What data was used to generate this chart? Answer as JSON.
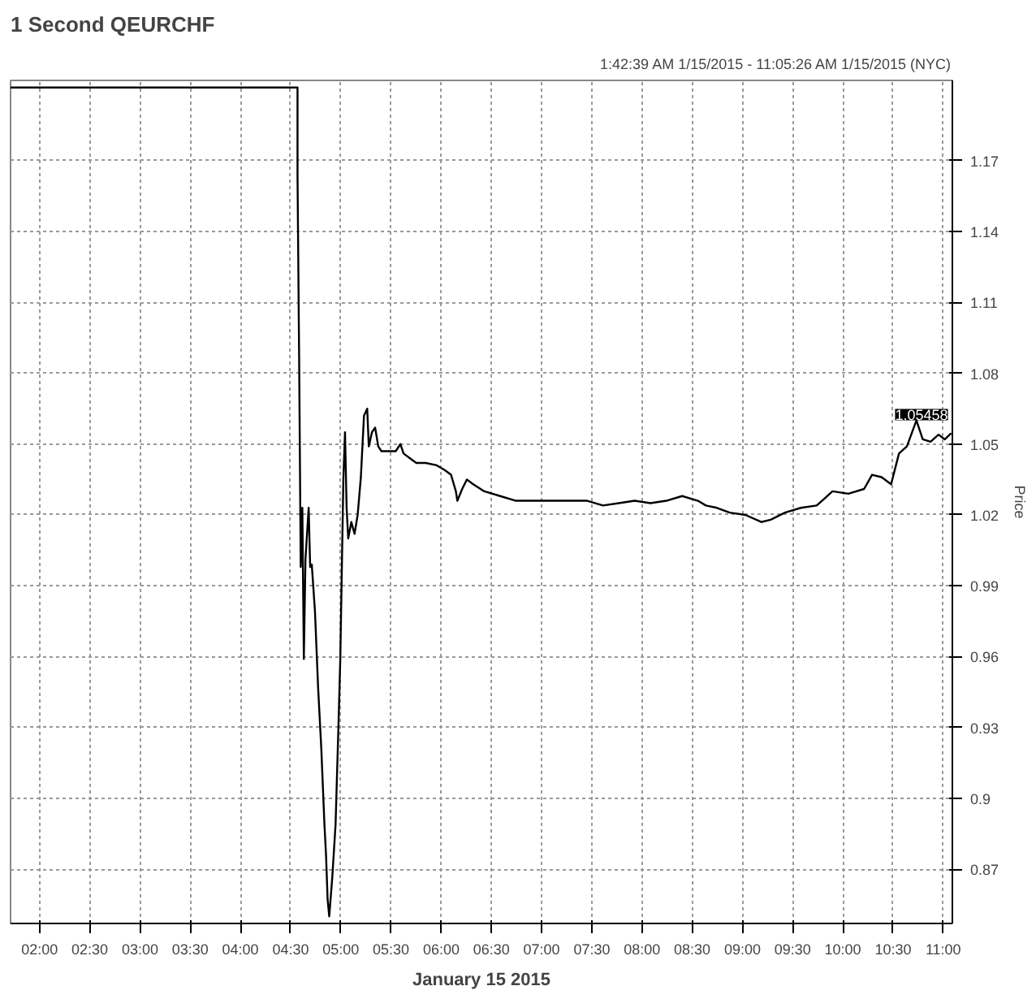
{
  "chart_data": {
    "type": "line",
    "title": "1 Second QEURCHF",
    "subtitle": "1:42:39 AM 1/15/2015 - 11:05:26 AM 1/15/2015 (NYC)",
    "xlabel": "January 15 2015",
    "ylabel": "Price",
    "x": [
      1.711,
      4.569,
      4.569,
      4.585,
      4.601,
      4.617,
      4.632,
      4.648,
      4.68,
      4.695,
      4.711,
      4.743,
      4.774,
      4.806,
      4.837,
      4.853,
      4.869,
      4.885,
      4.916,
      4.948,
      4.979,
      4.995,
      5.026,
      5.042,
      5.058,
      5.074,
      5.105,
      5.137,
      5.168,
      5.2,
      5.231,
      5.263,
      5.279,
      5.31,
      5.342,
      5.373,
      5.405,
      5.452,
      5.499,
      5.547,
      5.594,
      5.625,
      5.689,
      5.752,
      5.846,
      5.956,
      6.035,
      6.098,
      6.146,
      6.161,
      6.209,
      6.256,
      6.319,
      6.429,
      6.587,
      6.745,
      6.981,
      7.218,
      7.454,
      7.612,
      7.769,
      7.927,
      8.084,
      8.242,
      8.4,
      8.557,
      8.636,
      8.746,
      8.873,
      9.03,
      9.188,
      9.282,
      9.424,
      9.582,
      9.74,
      9.897,
      10.055,
      10.212,
      10.291,
      10.386,
      10.481,
      10.559,
      10.638,
      10.733,
      10.796,
      10.874,
      10.953,
      11.016,
      11.079
    ],
    "series": [
      {
        "color": "#000000",
        "values": [
          1.201,
          1.201,
          1.164,
          1.087,
          0.998,
          1.023,
          0.959,
          1.001,
          1.023,
          0.998,
          0.999,
          0.979,
          0.947,
          0.921,
          0.889,
          0.876,
          0.857,
          0.85,
          0.867,
          0.889,
          0.934,
          0.959,
          1.036,
          1.055,
          1.023,
          1.01,
          1.017,
          1.012,
          1.02,
          1.036,
          1.062,
          1.065,
          1.049,
          1.055,
          1.057,
          1.049,
          1.047,
          1.047,
          1.047,
          1.047,
          1.05,
          1.046,
          1.044,
          1.042,
          1.042,
          1.041,
          1.039,
          1.037,
          1.03,
          1.026,
          1.031,
          1.035,
          1.033,
          1.03,
          1.028,
          1.026,
          1.026,
          1.026,
          1.026,
          1.024,
          1.025,
          1.026,
          1.025,
          1.026,
          1.028,
          1.026,
          1.024,
          1.023,
          1.021,
          1.02,
          1.017,
          1.018,
          1.021,
          1.023,
          1.024,
          1.03,
          1.029,
          1.031,
          1.037,
          1.036,
          1.033,
          1.046,
          1.049,
          1.06,
          1.052,
          1.051,
          1.054,
          1.052,
          1.05458
        ]
      }
    ],
    "annotations": [
      {
        "text": "1.05458",
        "x": 11.079,
        "y": 1.05458
      }
    ],
    "xlim": [
      1.711,
      11.091
    ],
    "ylim": [
      0.847,
      1.204
    ],
    "xticks": [
      {
        "value": 2,
        "label": "02:00"
      },
      {
        "value": 2.5,
        "label": "02:30"
      },
      {
        "value": 3,
        "label": "03:00"
      },
      {
        "value": 3.5,
        "label": "03:30"
      },
      {
        "value": 4,
        "label": "04:00"
      },
      {
        "value": 4.5,
        "label": "04:30"
      },
      {
        "value": 5,
        "label": "05:00"
      },
      {
        "value": 5.5,
        "label": "05:30"
      },
      {
        "value": 6,
        "label": "06:00"
      },
      {
        "value": 6.5,
        "label": "06:30"
      },
      {
        "value": 7,
        "label": "07:00"
      },
      {
        "value": 7.5,
        "label": "07:30"
      },
      {
        "value": 8,
        "label": "08:00"
      },
      {
        "value": 8.5,
        "label": "08:30"
      },
      {
        "value": 9,
        "label": "09:00"
      },
      {
        "value": 9.5,
        "label": "09:30"
      },
      {
        "value": 10,
        "label": "10:00"
      },
      {
        "value": 10.5,
        "label": "10:30"
      },
      {
        "value": 11,
        "label": "11:00"
      }
    ],
    "yticks": [
      {
        "value": 0.87,
        "label": "0.87"
      },
      {
        "value": 0.9,
        "label": "0.9"
      },
      {
        "value": 0.93,
        "label": "0.93"
      },
      {
        "value": 0.96,
        "label": "0.96"
      },
      {
        "value": 0.99,
        "label": "0.99"
      },
      {
        "value": 1.02,
        "label": "1.02"
      },
      {
        "value": 1.05,
        "label": "1.05"
      },
      {
        "value": 1.08,
        "label": "1.08"
      },
      {
        "value": 1.11,
        "label": "1.11"
      },
      {
        "value": 1.14,
        "label": "1.14"
      },
      {
        "value": 1.17,
        "label": "1.17"
      }
    ],
    "grid": true,
    "line_style": "solid"
  }
}
